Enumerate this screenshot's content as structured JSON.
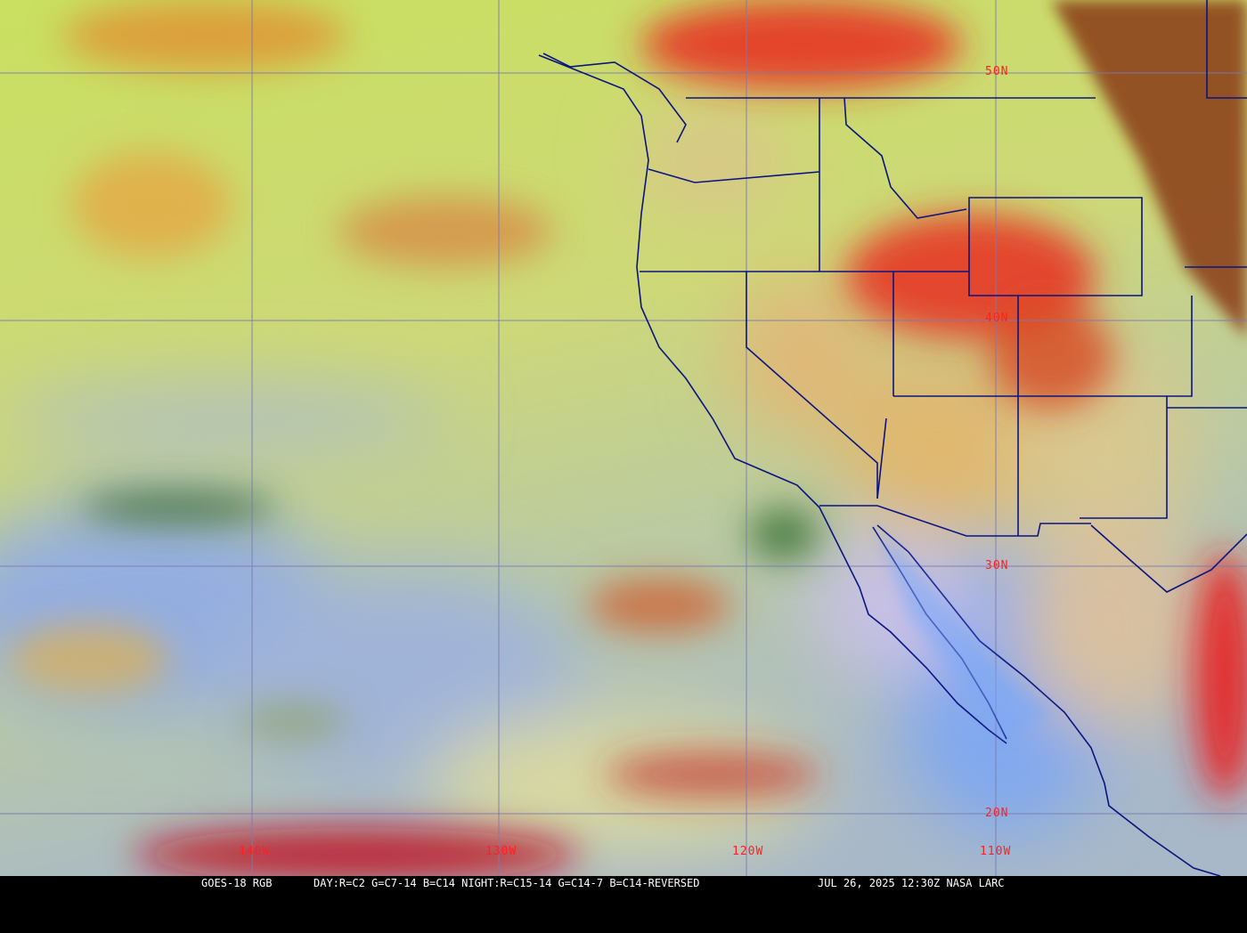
{
  "map": {
    "satellite": "GOES-18",
    "product": "RGB",
    "colors": {
      "ocean_clear": "#c8d870",
      "clouds_high": "#8fb0e0",
      "cold_tops": "#e01818",
      "water_vapor": "#e8b040",
      "border": "#0a1480",
      "grid": "#7a7ab0",
      "label": "#ff2020"
    },
    "longitude_labels": [
      "140W",
      "130W",
      "120W",
      "110W"
    ],
    "latitude_labels": [
      "50N",
      "40N",
      "30N",
      "20N"
    ]
  },
  "caption": {
    "left": "GOES-18 RGB",
    "recipe": "DAY:R=C2 G=C7-14 B=C14 NIGHT:R=C15-14 G=C14-7 B=C14-REVERSED",
    "timestamp": "JUL 26, 2025 12:30Z NASA LARC"
  }
}
